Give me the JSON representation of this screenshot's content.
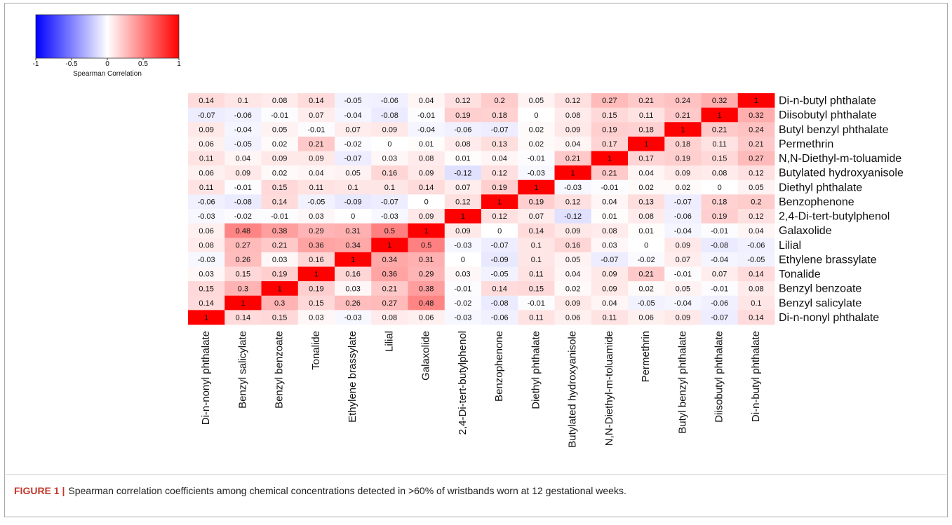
{
  "chart_data": {
    "type": "heatmap",
    "x_categories": [
      "Di-n-nonyl phthalate",
      "Benzyl salicylate",
      "Benzyl benzoate",
      "Tonalide",
      "Ethylene brassylate",
      "Lilial",
      "Galaxolide",
      "2,4-Di-tert-butylphenol",
      "Benzophenone",
      "Diethyl phthalate",
      "Butylated hydroxyanisole",
      "N,N-Diethyl-m-toluamide",
      "Permethrin",
      "Butyl benzyl phthalate",
      "Diisobutyl phthalate",
      "Di-n-butyl phthalate"
    ],
    "y_categories": [
      "Di-n-butyl phthalate",
      "Diisobutyl phthalate",
      "Butyl benzyl phthalate",
      "Permethrin",
      "N,N-Diethyl-m-toluamide",
      "Butylated hydroxyanisole",
      "Diethyl phthalate",
      "Benzophenone",
      "2,4-Di-tert-butylphenol",
      "Galaxolide",
      "Lilial",
      "Ethylene brassylate",
      "Tonalide",
      "Benzyl benzoate",
      "Benzyl salicylate",
      "Di-n-nonyl phthalate"
    ],
    "values": [
      [
        0.14,
        0.1,
        0.08,
        0.14,
        -0.05,
        -0.06,
        0.04,
        0.12,
        0.2,
        0.05,
        0.12,
        0.27,
        0.21,
        0.24,
        0.32,
        1
      ],
      [
        -0.07,
        -0.06,
        -0.01,
        0.07,
        -0.04,
        -0.08,
        -0.01,
        0.19,
        0.18,
        0,
        0.08,
        0.15,
        0.11,
        0.21,
        1,
        0.32
      ],
      [
        0.09,
        -0.04,
        0.05,
        -0.01,
        0.07,
        0.09,
        -0.04,
        -0.06,
        -0.07,
        0.02,
        0.09,
        0.19,
        0.18,
        1,
        0.21,
        0.24
      ],
      [
        0.06,
        -0.05,
        0.02,
        0.21,
        -0.02,
        0,
        0.01,
        0.08,
        0.13,
        0.02,
        0.04,
        0.17,
        1,
        0.18,
        0.11,
        0.21
      ],
      [
        0.11,
        0.04,
        0.09,
        0.09,
        -0.07,
        0.03,
        0.08,
        0.01,
        0.04,
        -0.01,
        0.21,
        1,
        0.17,
        0.19,
        0.15,
        0.27
      ],
      [
        0.06,
        0.09,
        0.02,
        0.04,
        0.05,
        0.16,
        0.09,
        -0.12,
        0.12,
        -0.03,
        1,
        0.21,
        0.04,
        0.09,
        0.08,
        0.12
      ],
      [
        0.11,
        -0.01,
        0.15,
        0.11,
        0.1,
        0.1,
        0.14,
        0.07,
        0.19,
        1,
        -0.03,
        -0.01,
        0.02,
        0.02,
        0,
        0.05
      ],
      [
        -0.06,
        -0.08,
        0.14,
        -0.05,
        -0.09,
        -0.07,
        0,
        0.12,
        1,
        0.19,
        0.12,
        0.04,
        0.13,
        -0.07,
        0.18,
        0.2
      ],
      [
        -0.03,
        -0.02,
        -0.01,
        0.03,
        0,
        -0.03,
        0.09,
        1,
        0.12,
        0.07,
        -0.12,
        0.01,
        0.08,
        -0.06,
        0.19,
        0.12
      ],
      [
        0.06,
        0.48,
        0.38,
        0.29,
        0.31,
        0.5,
        1,
        0.09,
        0,
        0.14,
        0.09,
        0.08,
        0.01,
        -0.04,
        -0.01,
        0.04
      ],
      [
        0.08,
        0.27,
        0.21,
        0.36,
        0.34,
        1,
        0.5,
        -0.03,
        -0.07,
        0.1,
        0.16,
        0.03,
        0,
        0.09,
        -0.08,
        -0.06
      ],
      [
        -0.03,
        0.26,
        0.03,
        0.16,
        1,
        0.34,
        0.31,
        0,
        -0.09,
        0.1,
        0.05,
        -0.07,
        -0.02,
        0.07,
        -0.04,
        -0.05
      ],
      [
        0.03,
        0.15,
        0.19,
        1,
        0.16,
        0.36,
        0.29,
        0.03,
        -0.05,
        0.11,
        0.04,
        0.09,
        0.21,
        -0.01,
        0.07,
        0.14
      ],
      [
        0.15,
        0.3,
        1,
        0.19,
        0.03,
        0.21,
        0.38,
        -0.01,
        0.14,
        0.15,
        0.02,
        0.09,
        0.02,
        0.05,
        -0.01,
        0.08
      ],
      [
        0.14,
        1,
        0.3,
        0.15,
        0.26,
        0.27,
        0.48,
        -0.02,
        -0.08,
        -0.01,
        0.09,
        0.04,
        -0.05,
        -0.04,
        -0.06,
        0.1
      ],
      [
        1,
        0.14,
        0.15,
        0.03,
        -0.03,
        0.08,
        0.06,
        -0.03,
        -0.06,
        0.11,
        0.06,
        0.11,
        0.06,
        0.09,
        -0.07,
        0.14
      ]
    ],
    "colorbar": {
      "label": "Spearman Correlation",
      "lim": [
        -1,
        1
      ],
      "ticks": [
        -1,
        -0.5,
        0,
        0.5,
        1
      ]
    },
    "colors": {
      "low": "#0000ff",
      "mid": "#ffffff",
      "high": "#ff0000"
    }
  },
  "figure": {
    "label": "FIGURE 1 |",
    "caption": "Spearman correlation coefficients among chemical concentrations detected in >60% of wristbands worn at 12 gestational weeks."
  }
}
